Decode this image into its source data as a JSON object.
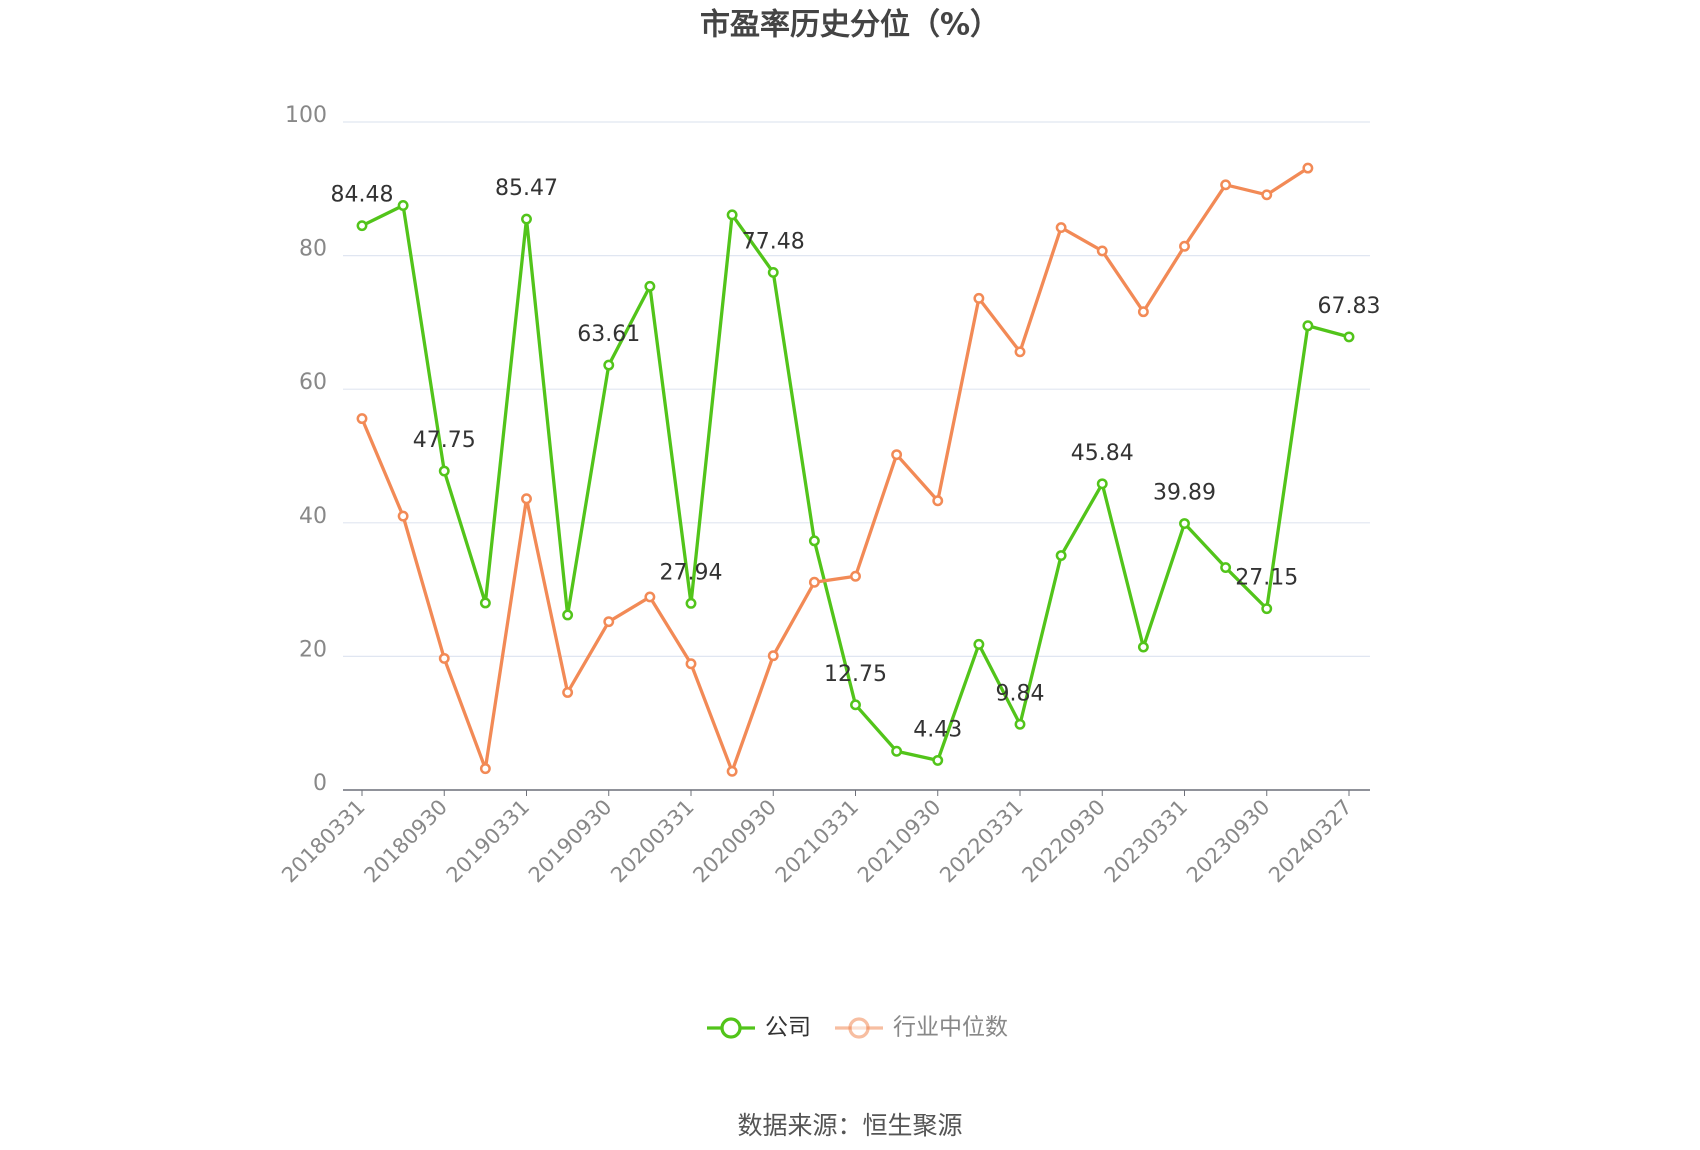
{
  "chart_data": {
    "type": "line",
    "title": "市盈率历史分位（%）",
    "categories": [
      "20180331",
      null,
      "20180930",
      null,
      "20190331",
      null,
      "20190930",
      null,
      "20200331",
      null,
      "20200930",
      null,
      "20210331",
      null,
      "20210930",
      null,
      "20220331",
      null,
      "20220930",
      null,
      "20230331",
      null,
      "20230930",
      null,
      "20240327"
    ],
    "series": [
      {
        "name": "公司",
        "color": "#52c41a",
        "values": [
          84.48,
          87.5,
          47.75,
          28,
          85.47,
          26.2,
          63.61,
          75.4,
          27.94,
          86.1,
          77.48,
          37.3,
          12.75,
          5.8,
          4.43,
          21.8,
          9.84,
          35.1,
          45.84,
          21.4,
          39.89,
          33.3,
          27.15,
          69.5,
          67.83
        ],
        "value_labels": [
          "84.48",
          null,
          "47.75",
          null,
          "85.47",
          null,
          "63.61",
          null,
          "27.94",
          null,
          "77.48",
          null,
          "12.75",
          null,
          "4.43",
          null,
          "9.84",
          null,
          "45.84",
          null,
          "39.89",
          null,
          "27.15",
          null,
          "67.83"
        ]
      },
      {
        "name": "行业中位数",
        "color": "#f28a56",
        "values": [
          55.6,
          41,
          19.7,
          3.2,
          43.6,
          14.6,
          25.2,
          28.9,
          18.9,
          2.8,
          20.1,
          31.1,
          32,
          50.2,
          43.3,
          73.6,
          65.6,
          84.2,
          80.7,
          71.6,
          81.4,
          90.6,
          89.1,
          93.1,
          null
        ]
      }
    ],
    "ylim": [
      0,
      100
    ],
    "yticks": [
      0,
      20,
      40,
      60,
      80,
      100
    ],
    "grid": true,
    "source": "数据来源：恒生聚源"
  }
}
